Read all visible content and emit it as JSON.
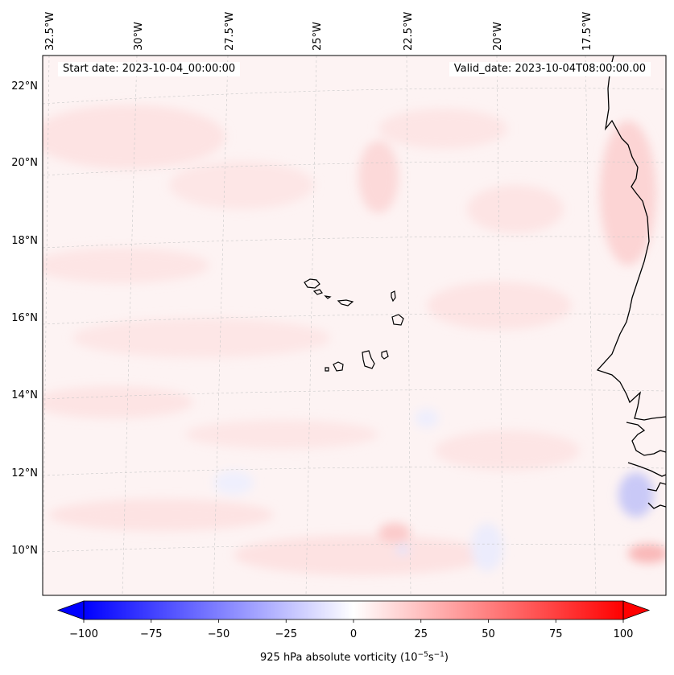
{
  "header": {
    "start_date": "Start date: 2023-10-04_00:00:00",
    "valid_date": "Valid_date: 2023-10-04T08:00:00.00"
  },
  "map": {
    "projection": "lambert-conformal",
    "longitude_labels": [
      "32.5°W",
      "30°W",
      "27.5°W",
      "25°W",
      "22.5°W",
      "20°W",
      "17.5°W"
    ],
    "latitude_labels": [
      "22°N",
      "20°N",
      "18°N",
      "16°N",
      "14°N",
      "12°N",
      "10°N"
    ],
    "gridlines": true,
    "features": [
      "coastline-west-africa",
      "cape-verde-islands"
    ]
  },
  "colorbar": {
    "label": "925 hPa absolute vorticity (10",
    "label_exp1": "−5",
    "label_mid": "s",
    "label_exp2": "−1",
    "label_end": ")",
    "ticks": [
      "−100",
      "−75",
      "−50",
      "−25",
      "0",
      "25",
      "50",
      "75",
      "100"
    ],
    "range": [
      -100,
      100
    ],
    "colormap": "bwr",
    "extend": "both",
    "color_min": "#0000ff",
    "color_mid": "#ffffff",
    "color_max": "#ff0000"
  }
}
